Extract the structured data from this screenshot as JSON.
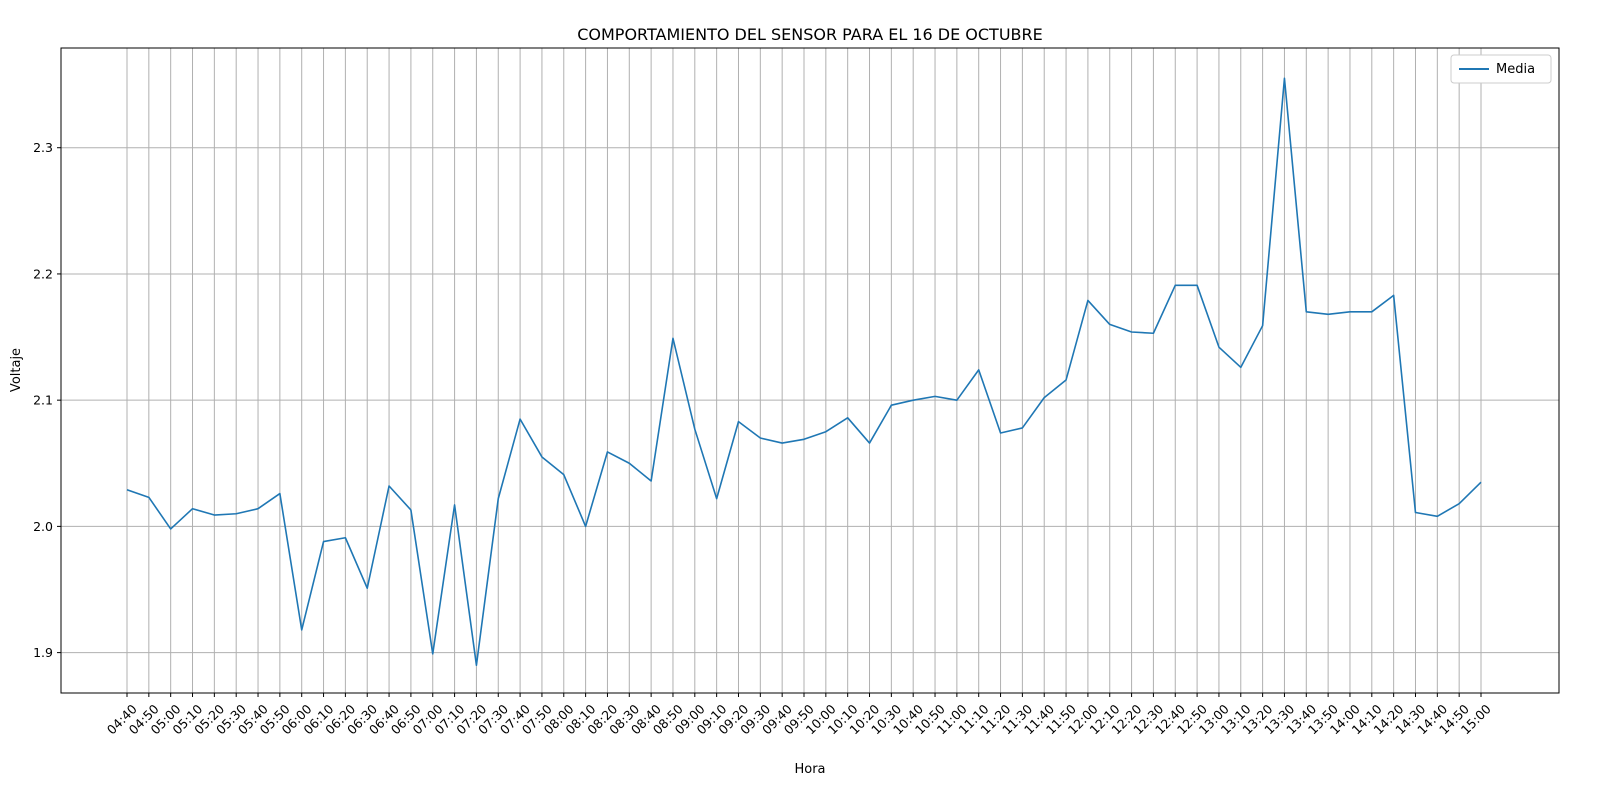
{
  "chart_data": {
    "type": "line",
    "title": "COMPORTAMIENTO DEL SENSOR PARA EL 16 DE OCTUBRE",
    "xlabel": "Hora",
    "ylabel": "Voltaje",
    "grid": true,
    "legend_position": "top-right",
    "ylim": [
      1.868,
      2.379
    ],
    "yticks": [
      1.9,
      2.0,
      2.1,
      2.2,
      2.3
    ],
    "ytick_labels": [
      "1.9",
      "2.0",
      "2.1",
      "2.2",
      "2.3"
    ],
    "categories": [
      "04:40",
      "04:50",
      "05:00",
      "05:10",
      "05:20",
      "05:30",
      "05:40",
      "05:50",
      "06:00",
      "06:10",
      "06:20",
      "06:30",
      "06:40",
      "06:50",
      "07:00",
      "07:10",
      "07:20",
      "07:30",
      "07:40",
      "07:50",
      "08:00",
      "08:10",
      "08:20",
      "08:30",
      "08:40",
      "08:50",
      "09:00",
      "09:10",
      "09:20",
      "09:30",
      "09:40",
      "09:50",
      "10:00",
      "10:10",
      "10:20",
      "10:30",
      "10:40",
      "10:50",
      "11:00",
      "11:10",
      "11:20",
      "11:30",
      "11:40",
      "11:50",
      "12:00",
      "12:10",
      "12:20",
      "12:30",
      "12:40",
      "12:50",
      "13:00",
      "13:10",
      "13:20",
      "13:30",
      "13:40",
      "13:50",
      "14:00",
      "14:10",
      "14:20",
      "14:30",
      "14:40",
      "14:50",
      "15:00"
    ],
    "series": [
      {
        "name": "Media",
        "color": "#1f77b4",
        "values": [
          2.029,
          2.023,
          1.998,
          2.014,
          2.009,
          2.01,
          2.014,
          2.026,
          1.918,
          1.988,
          1.991,
          1.951,
          2.032,
          2.013,
          1.899,
          2.017,
          1.89,
          2.022,
          2.085,
          2.055,
          2.041,
          2.0,
          2.059,
          2.05,
          2.036,
          2.149,
          2.077,
          2.022,
          2.083,
          2.07,
          2.066,
          2.069,
          2.075,
          2.086,
          2.066,
          2.096,
          2.1,
          2.103,
          2.1,
          2.124,
          2.074,
          2.078,
          2.102,
          2.116,
          2.179,
          2.16,
          2.154,
          2.153,
          2.191,
          2.191,
          2.142,
          2.126,
          2.159,
          2.355,
          2.17,
          2.168,
          2.17,
          2.17,
          2.183,
          2.011,
          2.008,
          2.018,
          2.035
        ]
      }
    ]
  }
}
